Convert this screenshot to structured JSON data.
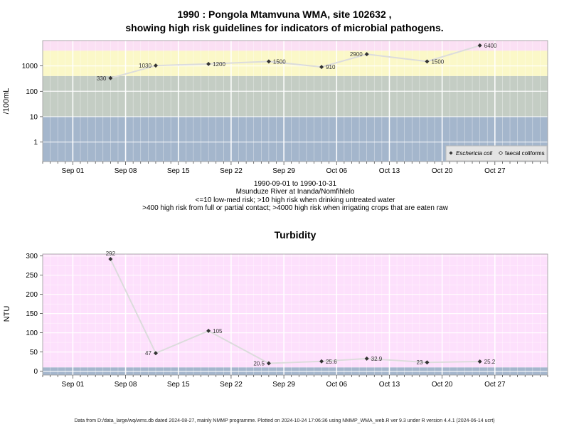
{
  "colors": {
    "risk_blue": "#a4b6cc",
    "risk_grey": "#c4cdc4",
    "risk_yellow": "#fbf8c8",
    "risk_pink": "#fbe0f4",
    "turb_pink": "#fde0fc",
    "turb_blue": "#a4b6cc",
    "line": "#dcdcdc",
    "marker": "#333333"
  },
  "titles": {
    "line1": "1990 : Pongola Mtamvuna WMA, site 102632 ,",
    "line2": "showing high risk guidelines for indicators of microbial pathogens."
  },
  "captions": {
    "range": "1990-09-01 to 1990-10-31",
    "site": "Msunduze River at Inanda/Nomfihlelo",
    "note1": "<=10 low-med risk; >10 high risk when drinking untreated water",
    "note2": ">400 high risk from full or partial contact; >4000 high risk when irrigating crops that are eaten raw"
  },
  "footer": "Data from D:/data_large/wq/wms.db dated 2024-08-27, mainly NMMP programme. Plotted on 2024-10-24 17:06:36 using NMMP_WMA_web.R ver 9.3 under R version 4.4.1 (2024-06-14 ucrt)",
  "chart_data": [
    {
      "type": "scatter",
      "title": "1990 : Pongola Mtamvuna WMA, site 102632 , showing high risk guidelines for indicators of microbial pathogens.",
      "ylabel": "/100mL",
      "y_scale": "log",
      "ylim": [
        0.17,
        10000
      ],
      "x_range": [
        "1990-08-28",
        "1990-11-03"
      ],
      "x_ticks": [
        {
          "date": "1990-09-01",
          "label": "Sep 01"
        },
        {
          "date": "1990-09-08",
          "label": "Sep 08"
        },
        {
          "date": "1990-09-15",
          "label": "Sep 15"
        },
        {
          "date": "1990-09-22",
          "label": "Sep 22"
        },
        {
          "date": "1990-09-29",
          "label": "Sep 29"
        },
        {
          "date": "1990-10-06",
          "label": "Oct 06"
        },
        {
          "date": "1990-10-13",
          "label": "Oct 13"
        },
        {
          "date": "1990-10-20",
          "label": "Oct 20"
        },
        {
          "date": "1990-10-27",
          "label": "Oct 27"
        }
      ],
      "y_ticks": [
        {
          "value": 1,
          "label": "1"
        },
        {
          "value": 10,
          "label": "10"
        },
        {
          "value": 100,
          "label": "100"
        },
        {
          "value": 1000,
          "label": "1000"
        }
      ],
      "risk_bands": [
        {
          "from": 0.17,
          "to": 10,
          "color": "#a4b6cc"
        },
        {
          "from": 10,
          "to": 400,
          "color": "#c4cdc4"
        },
        {
          "from": 400,
          "to": 4000,
          "color": "#fbf8c8"
        },
        {
          "from": 4000,
          "to": 10000,
          "color": "#fbe0f4"
        }
      ],
      "legend": {
        "placement": "bottom-right",
        "entries": [
          {
            "label": "Eschericia coli",
            "marker": "filled-diamond",
            "italic": true
          },
          {
            "label": "faecal coliforms",
            "marker": "open-diamond",
            "italic": false
          }
        ]
      },
      "series": [
        {
          "name": "Eschericia coli",
          "points": [
            {
              "x": "1990-09-06",
              "y": 330,
              "label": "330",
              "side": "left"
            },
            {
              "x": "1990-09-12",
              "y": 1030,
              "label": "1030",
              "side": "left"
            },
            {
              "x": "1990-09-19",
              "y": 1200,
              "label": "1200",
              "side": "right"
            },
            {
              "x": "1990-09-27",
              "y": 1500,
              "label": "1500",
              "side": "right"
            },
            {
              "x": "1990-10-04",
              "y": 910,
              "label": "910",
              "side": "right"
            },
            {
              "x": "1990-10-10",
              "y": 2900,
              "label": "2900",
              "side": "left"
            },
            {
              "x": "1990-10-18",
              "y": 1500,
              "label": "1500",
              "side": "right"
            },
            {
              "x": "1990-10-25",
              "y": 6400,
              "label": "6400",
              "side": "right"
            }
          ]
        }
      ]
    },
    {
      "type": "scatter",
      "title": "Turbidity",
      "ylabel": "NTU",
      "ylim": [
        -10,
        305
      ],
      "x_range": [
        "1990-08-28",
        "1990-11-03"
      ],
      "x_ticks": [
        {
          "date": "1990-09-01",
          "label": "Sep 01"
        },
        {
          "date": "1990-09-08",
          "label": "Sep 08"
        },
        {
          "date": "1990-09-15",
          "label": "Sep 15"
        },
        {
          "date": "1990-09-22",
          "label": "Sep 22"
        },
        {
          "date": "1990-09-29",
          "label": "Sep 29"
        },
        {
          "date": "1990-10-06",
          "label": "Oct 06"
        },
        {
          "date": "1990-10-13",
          "label": "Oct 13"
        },
        {
          "date": "1990-10-20",
          "label": "Oct 20"
        },
        {
          "date": "1990-10-27",
          "label": "Oct 27"
        }
      ],
      "y_ticks": [
        {
          "value": 0,
          "label": "0"
        },
        {
          "value": 50,
          "label": "50"
        },
        {
          "value": 100,
          "label": "100"
        },
        {
          "value": 150,
          "label": "150"
        },
        {
          "value": 200,
          "label": "200"
        },
        {
          "value": 250,
          "label": "250"
        },
        {
          "value": 300,
          "label": "300"
        }
      ],
      "risk_bands": [
        {
          "from": -10,
          "to": 10,
          "color": "#a4b6cc"
        },
        {
          "from": 10,
          "to": 305,
          "color": "#fde0fc"
        }
      ],
      "series": [
        {
          "name": "Turbidity",
          "points": [
            {
              "x": "1990-09-06",
              "y": 292,
              "label": "292",
              "side": "above"
            },
            {
              "x": "1990-09-12",
              "y": 47,
              "label": "47",
              "side": "left"
            },
            {
              "x": "1990-09-19",
              "y": 105,
              "label": "105",
              "side": "right"
            },
            {
              "x": "1990-09-27",
              "y": 20.5,
              "label": "20.5",
              "side": "left"
            },
            {
              "x": "1990-10-04",
              "y": 25.6,
              "label": "25.6",
              "side": "right"
            },
            {
              "x": "1990-10-10",
              "y": 32.9,
              "label": "32.9",
              "side": "right"
            },
            {
              "x": "1990-10-18",
              "y": 23,
              "label": "23",
              "side": "left"
            },
            {
              "x": "1990-10-25",
              "y": 25.2,
              "label": "25.2",
              "side": "right"
            }
          ]
        }
      ]
    }
  ]
}
